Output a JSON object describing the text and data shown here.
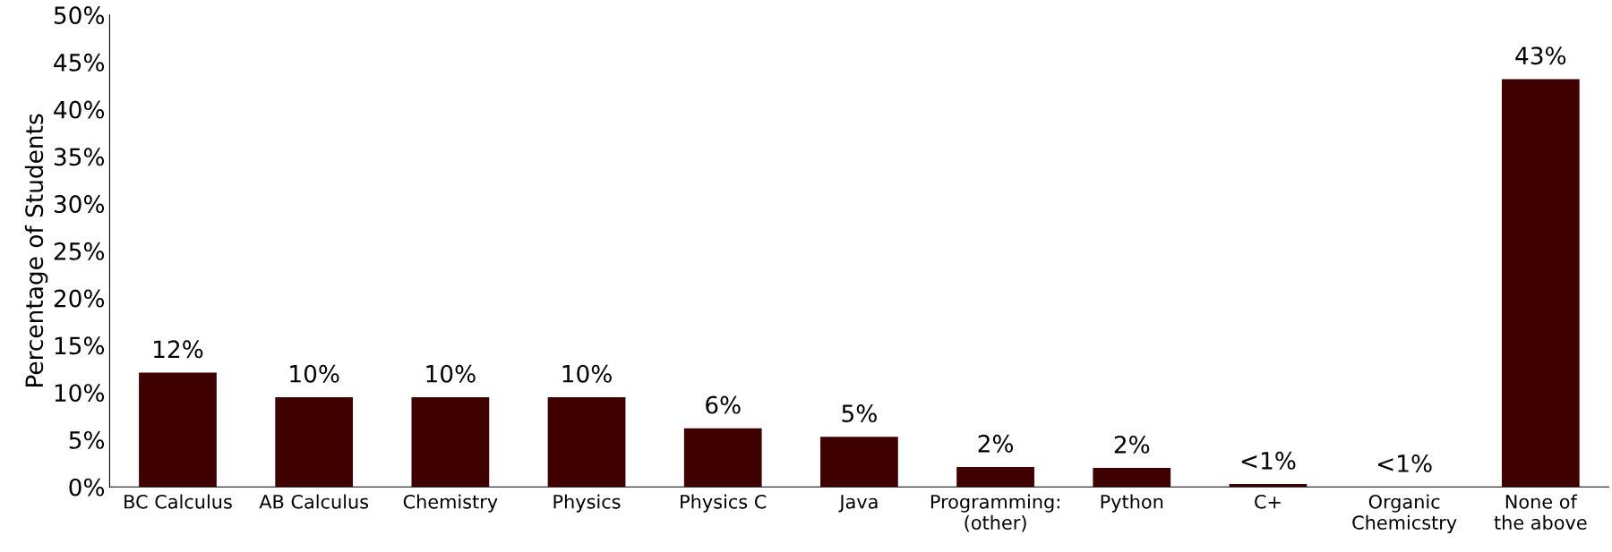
{
  "chart_data": {
    "type": "bar",
    "ylabel": "Percentage of Students",
    "categories": [
      "BC Calculus",
      "AB Calculus",
      "Chemistry",
      "Physics",
      "Physics C",
      "Java",
      "Programming:\n(other)",
      "Python",
      "C+",
      "Organic\nChemicstry",
      "None of\nthe above"
    ],
    "values": [
      12.1,
      9.5,
      9.5,
      9.5,
      6.2,
      5.3,
      2.1,
      2.0,
      0.3,
      0,
      43.2
    ],
    "value_labels": [
      "12%",
      "10%",
      "10%",
      "10%",
      "6%",
      "5%",
      "2%",
      "2%",
      "<1%",
      "<1%",
      "43%"
    ],
    "color": "#3f0000",
    "ylim": [
      0,
      50
    ],
    "yticks": [
      {
        "value": 0,
        "label": "0%"
      },
      {
        "value": 5,
        "label": "5%"
      },
      {
        "value": 10,
        "label": "10%"
      },
      {
        "value": 15,
        "label": "15%"
      },
      {
        "value": 20,
        "label": "20%"
      },
      {
        "value": 25,
        "label": "25%"
      },
      {
        "value": 30,
        "label": "30%"
      },
      {
        "value": 35,
        "label": "35%"
      },
      {
        "value": 40,
        "label": "40%"
      },
      {
        "value": 45,
        "label": "45%"
      },
      {
        "value": 50,
        "label": "50%"
      }
    ],
    "grid": false,
    "legend": false
  }
}
